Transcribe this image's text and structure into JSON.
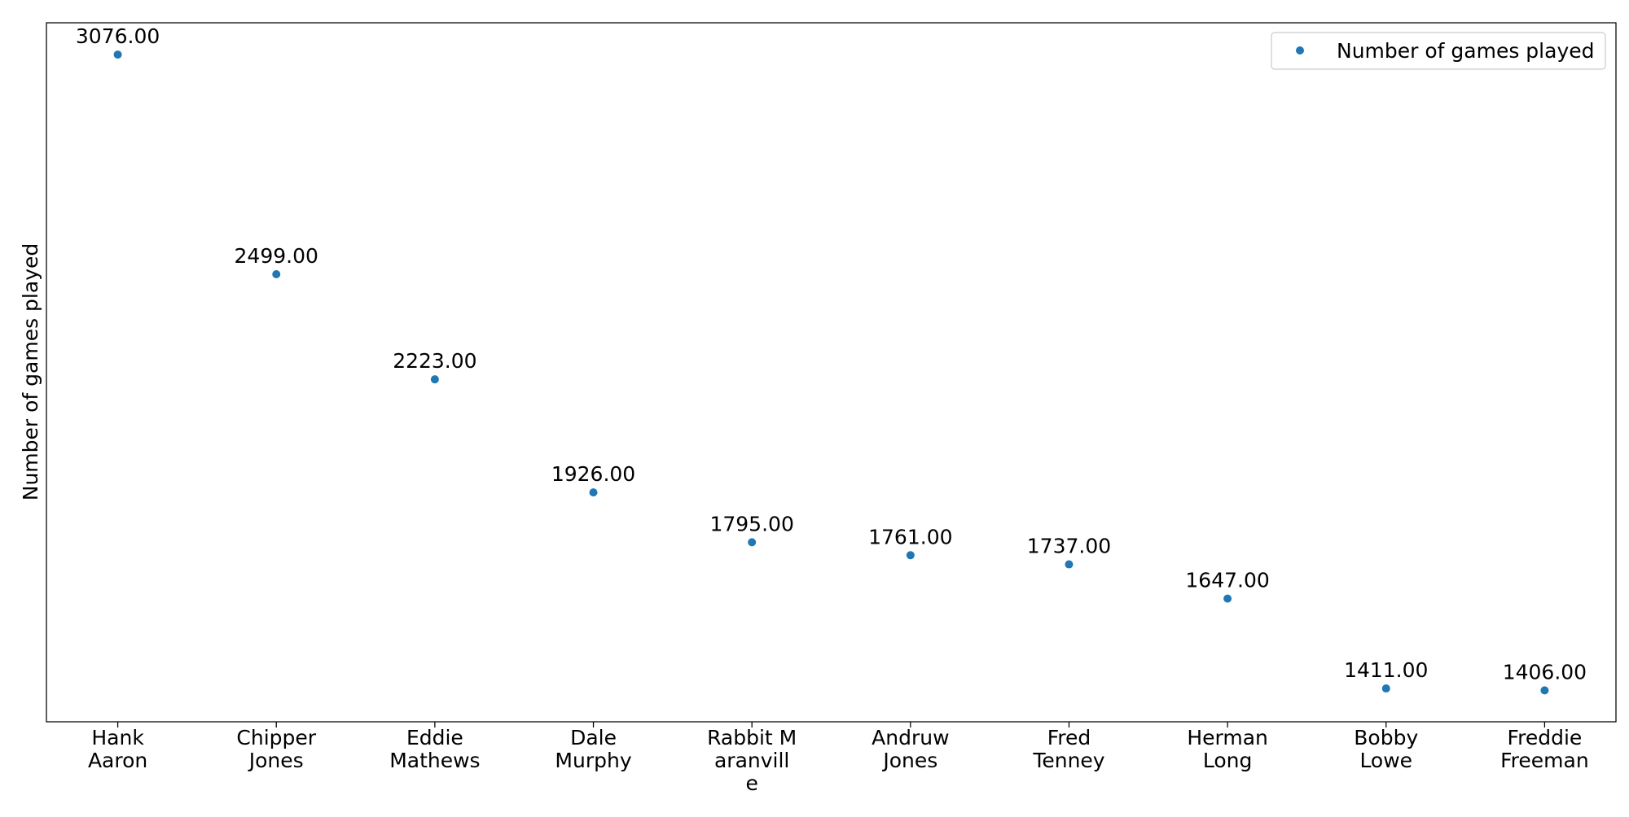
{
  "chart_data": {
    "type": "scatter",
    "title": "",
    "xlabel": "",
    "ylabel": "Number of games played",
    "categories": [
      [
        "Hank",
        "Aaron"
      ],
      [
        "Chipper",
        "Jones"
      ],
      [
        "Eddie",
        "Mathews"
      ],
      [
        "Dale",
        "Murphy"
      ],
      [
        "Rabbit M",
        "aranvill",
        "e"
      ],
      [
        "Andruw",
        "Jones"
      ],
      [
        "Fred",
        "Tenney"
      ],
      [
        "Herman",
        "Long"
      ],
      [
        "Bobby",
        "Lowe"
      ],
      [
        "Freddie",
        "Freeman"
      ]
    ],
    "series": [
      {
        "name": "Number of games played",
        "color": "#1f77b4",
        "values": [
          3076,
          2499,
          2223,
          1926,
          1795,
          1761,
          1737,
          1647,
          1411,
          1406
        ],
        "data_labels": [
          "3076.00",
          "2499.00",
          "2223.00",
          "1926.00",
          "1795.00",
          "1761.00",
          "1737.00",
          "1647.00",
          "1411.00",
          "1406.00"
        ]
      }
    ],
    "ylim": [
      1323.5,
      3159.5
    ],
    "y_ticks_visible": false,
    "grid": false,
    "legend": {
      "position": "top-right",
      "labels": [
        "Number of games played"
      ]
    }
  }
}
